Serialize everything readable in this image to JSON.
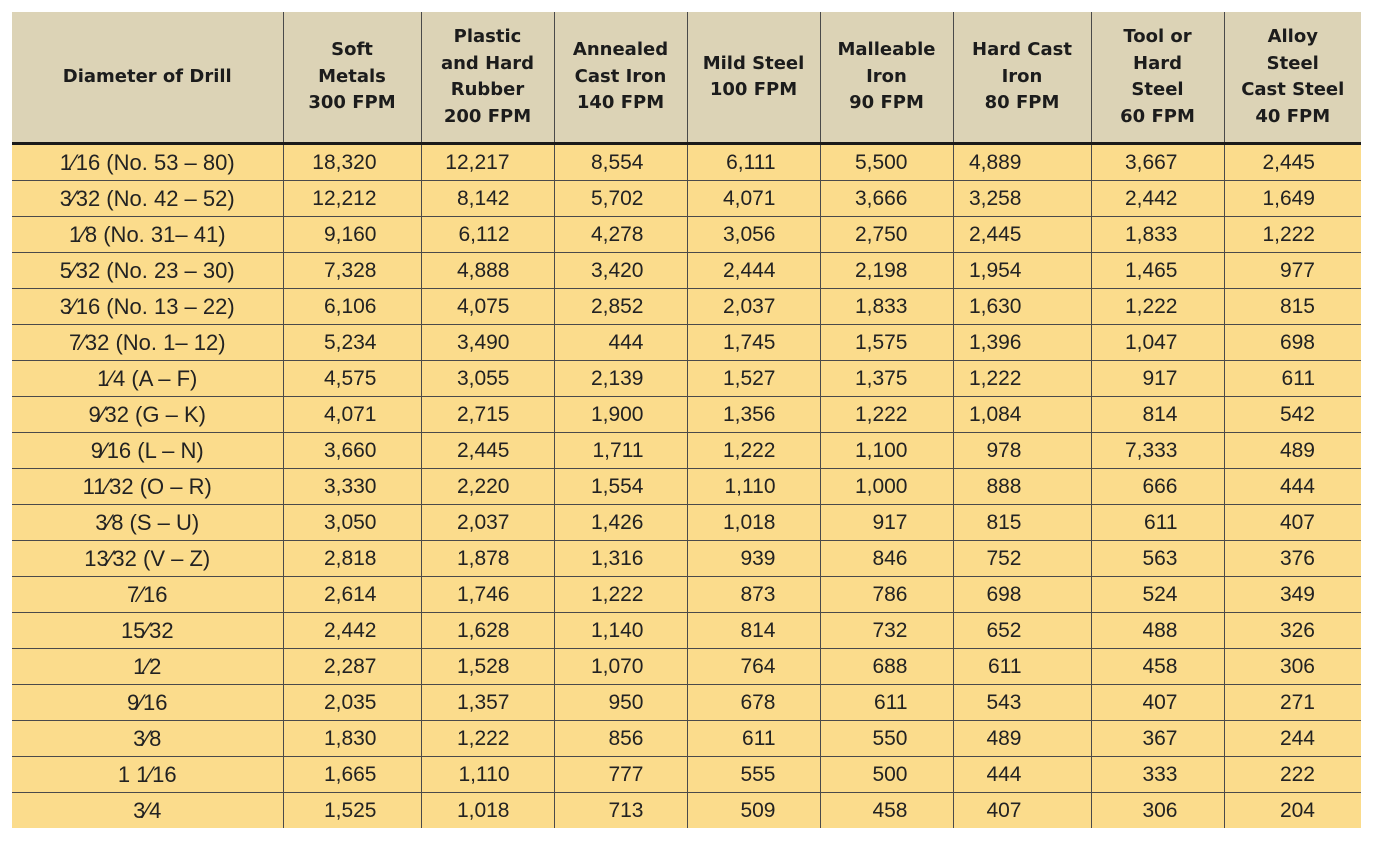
{
  "table": {
    "headers": [
      "Diameter of Drill",
      "Soft\nMetals\n300 FPM",
      "Plastic\nand Hard\nRubber\n200 FPM",
      "Annealed\nCast Iron\n140 FPM",
      "Mild Steel\n100 FPM",
      "Malleable\nIron\n90 FPM",
      "Hard Cast\nIron\n80 FPM",
      "Tool or\nHard\nSteel\n60 FPM",
      "Alloy\nSteel\nCast Steel\n40 FPM"
    ],
    "rows": [
      [
        "1⁄16 (No. 53 – 80)",
        "18,320",
        "12,217",
        "8,554",
        "6,111",
        "5,500",
        "4,889",
        "3,667",
        "2,445"
      ],
      [
        "3⁄32 (No. 42 – 52)",
        "12,212",
        "8,142",
        "5,702",
        "4,071",
        "3,666",
        "3,258",
        "2,442",
        "1,649"
      ],
      [
        "1⁄8 (No. 31– 41)",
        "9,160",
        "6,112",
        "4,278",
        "3,056",
        "2,750",
        "2,445",
        "1,833",
        "1,222"
      ],
      [
        "5⁄32 (No. 23 – 30)",
        "7,328",
        "4,888",
        "3,420",
        "2,444",
        "2,198",
        "1,954",
        "1,465",
        "977"
      ],
      [
        "3⁄16 (No. 13 – 22)",
        "6,106",
        "4,075",
        "2,852",
        "2,037",
        "1,833",
        "1,630",
        "1,222",
        "815"
      ],
      [
        "7⁄32 (No. 1– 12)",
        "5,234",
        "3,490",
        "444",
        "1,745",
        "1,575",
        "1,396",
        "1,047",
        "698"
      ],
      [
        "1⁄4 (A – F)",
        "4,575",
        "3,055",
        "2,139",
        "1,527",
        "1,375",
        "1,222",
        "917",
        "611"
      ],
      [
        "9⁄32 (G – K)",
        "4,071",
        "2,715",
        "1,900",
        "1,356",
        "1,222",
        "1,084",
        "814",
        "542"
      ],
      [
        "9⁄16 (L – N)",
        "3,660",
        "2,445",
        "1,711",
        "1,222",
        "1,100",
        "978",
        "7,333",
        "489"
      ],
      [
        "11⁄32 (O – R)",
        "3,330",
        "2,220",
        "1,554",
        "1,110",
        "1,000",
        "888",
        "666",
        "444"
      ],
      [
        "3⁄8 (S – U)",
        "3,050",
        "2,037",
        "1,426",
        "1,018",
        "917",
        "815",
        "611",
        "407"
      ],
      [
        "13⁄32 (V – Z)",
        "2,818",
        "1,878",
        "1,316",
        "939",
        "846",
        "752",
        "563",
        "376"
      ],
      [
        "7⁄16",
        "2,614",
        "1,746",
        "1,222",
        "873",
        "786",
        "698",
        "524",
        "349"
      ],
      [
        "15⁄32",
        "2,442",
        "1,628",
        "1,140",
        "814",
        "732",
        "652",
        "488",
        "326"
      ],
      [
        "1⁄2",
        "2,287",
        "1,528",
        "1,070",
        "764",
        "688",
        "611",
        "458",
        "306"
      ],
      [
        "9⁄16",
        "2,035",
        "1,357",
        "950",
        "678",
        "611",
        "543",
        "407",
        "271"
      ],
      [
        "3⁄8",
        "1,830",
        "1,222",
        "856",
        "611",
        "550",
        "489",
        "367",
        "244"
      ],
      [
        "1 1⁄16",
        "1,665",
        "1,110",
        "777",
        "555",
        "500",
        "444",
        "333",
        "222"
      ],
      [
        "3⁄4",
        "1,525",
        "1,018",
        "713",
        "509",
        "458",
        "407",
        "306",
        "204"
      ]
    ]
  }
}
